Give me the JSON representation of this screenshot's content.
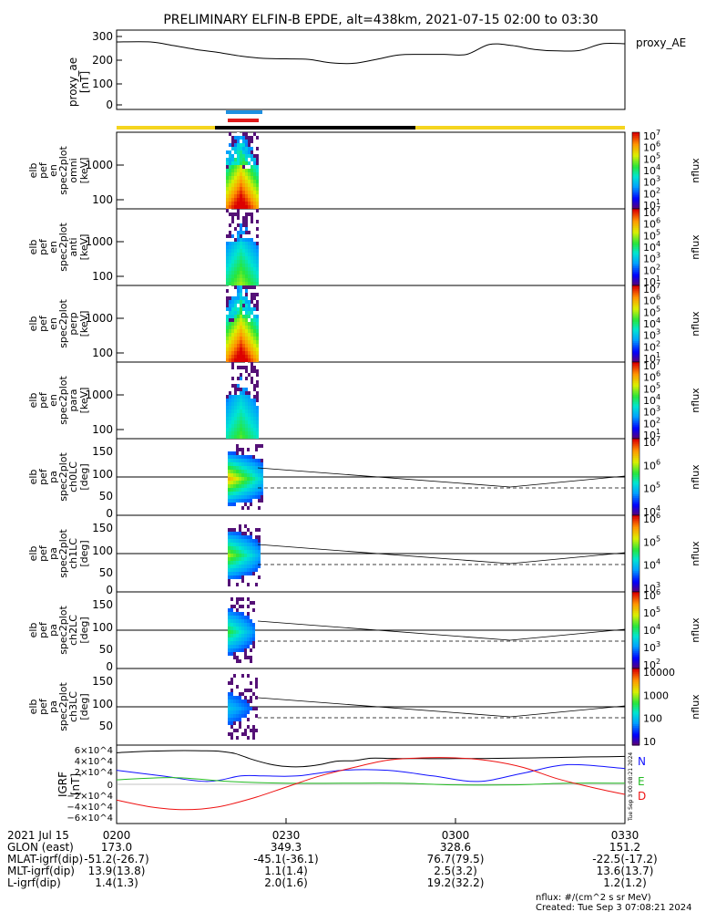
{
  "title": "PRELIMINARY ELFIN-B EPDE, alt=438km, 2021-07-15 02:00 to 03:30",
  "colors": {
    "yellow": "#f5d51f",
    "black": "#000000",
    "blue_bar": "#1e8fe0",
    "red_bar": "#e0191a",
    "N": "#1010ff",
    "E": "#22bb22",
    "D": "#ee1111"
  },
  "proxy_ae": {
    "ylabel": [
      "proxy_ae",
      "[nT]"
    ],
    "legend": "proxy_AE",
    "yticks": [
      "300",
      "200",
      "100",
      "0"
    ],
    "ylim": [
      -10,
      310
    ]
  },
  "spectro_panels": [
    {
      "ylabel": [
        "elb",
        "pef",
        "en",
        "spec2plot",
        "omni",
        "[keV]"
      ],
      "yticks": [
        "1000",
        "100"
      ],
      "cbar_ticks": [
        "10^7",
        "10^6",
        "10^5",
        "10^4",
        "10^3",
        "10^2",
        "10^1"
      ],
      "cbar_label": "nflux"
    },
    {
      "ylabel": [
        "elb",
        "pef",
        "en",
        "spec2plot",
        "anti",
        "[keV]"
      ],
      "yticks": [
        "1000",
        "100"
      ],
      "cbar_ticks": [
        "10^7",
        "10^6",
        "10^5",
        "10^4",
        "10^3",
        "10^2",
        "10^1"
      ],
      "cbar_label": "nflux"
    },
    {
      "ylabel": [
        "elb",
        "pef",
        "en",
        "spec2plot",
        "perp",
        "[keV]"
      ],
      "yticks": [
        "1000",
        "100"
      ],
      "cbar_ticks": [
        "10^7",
        "10^6",
        "10^5",
        "10^4",
        "10^3",
        "10^2",
        "10^1"
      ],
      "cbar_label": "nflux"
    },
    {
      "ylabel": [
        "elb",
        "pef",
        "en",
        "spec2plot",
        "para",
        "[keV]"
      ],
      "yticks": [
        "1000",
        "100"
      ],
      "cbar_ticks": [
        "10^7",
        "10^6",
        "10^5",
        "10^4",
        "10^3",
        "10^2",
        "10^1"
      ],
      "cbar_label": "nflux"
    }
  ],
  "pa_panels": [
    {
      "ylabel": [
        "elb",
        "pef",
        "pa",
        "spec2plot",
        "ch0LC",
        "[deg]"
      ],
      "yticks": [
        "150",
        "100",
        "50",
        "0"
      ],
      "cbar_ticks": [
        "10^7",
        "10^6",
        "10^5",
        "10^4"
      ],
      "cbar_label": "nflux"
    },
    {
      "ylabel": [
        "elb",
        "pef",
        "pa",
        "spec2plot",
        "ch1LC",
        "[deg]"
      ],
      "yticks": [
        "150",
        "100",
        "50",
        "0"
      ],
      "cbar_ticks": [
        "10^6",
        "10^5",
        "10^4",
        "10^3"
      ],
      "cbar_label": "nflux"
    },
    {
      "ylabel": [
        "elb",
        "pef",
        "pa",
        "spec2plot",
        "ch2LC",
        "[deg]"
      ],
      "yticks": [
        "150",
        "100",
        "50",
        "0"
      ],
      "cbar_ticks": [
        "10^6",
        "10^5",
        "10^4",
        "10^3",
        "10^2"
      ],
      "cbar_label": "nflux"
    },
    {
      "ylabel": [
        "elb",
        "pef",
        "pa",
        "spec2plot",
        "ch3LC",
        "[deg]"
      ],
      "yticks": [
        "150",
        "100",
        "50"
      ],
      "cbar_ticks": [
        "10000",
        "1000",
        "100",
        "10"
      ],
      "cbar_label": "nflux"
    }
  ],
  "igrf": {
    "ylabel": [
      "IGRF",
      "[nT]"
    ],
    "yticks": [
      "6×10^4",
      "4×10^4",
      "2×10^4",
      "0",
      "−2×10^4",
      "−4×10^4",
      "−6×10^4"
    ],
    "legend": [
      "N",
      "E",
      "D"
    ],
    "side_text": "Tue Sep  3 00:08:21 2024"
  },
  "bottom_table": {
    "rows": [
      {
        "label": "2021 Jul 15",
        "values": [
          "0200",
          "0230",
          "0300",
          "0330"
        ]
      },
      {
        "label": "GLON (east)",
        "values": [
          "173.0",
          "349.3",
          "328.6",
          "151.2"
        ]
      },
      {
        "label": "MLAT-igrf(dip)",
        "values": [
          "-51.2(-26.7)",
          "-45.1(-36.1)",
          "76.7(79.5)",
          "-22.5(-17.2)"
        ]
      },
      {
        "label": "MLT-igrf(dip)",
        "values": [
          "13.9(13.8)",
          "1.1(1.4)",
          "2.5(3.2)",
          "13.6(13.7)"
        ]
      },
      {
        "label": "L-igrf(dip)",
        "values": [
          "1.4(1.3)",
          "2.0(1.6)",
          "19.2(32.2)",
          "1.2(1.2)"
        ]
      }
    ]
  },
  "footer": {
    "units": "nflux: #/(cm^2 s sr MeV)",
    "created": "Created: Tue Sep  3 07:08:21 2024"
  },
  "chart_data": {
    "type": "line",
    "x": [
      "0200",
      "0230",
      "0300",
      "0330"
    ],
    "proxy_ae_series": {
      "x_min": [
        0,
        6,
        10,
        14,
        18,
        22,
        26,
        30,
        34,
        38,
        42,
        46,
        50,
        54,
        58,
        62,
        66,
        70,
        74,
        78,
        82,
        86,
        90
      ],
      "values": [
        262,
        262,
        248,
        232,
        220,
        205,
        196,
        194,
        192,
        178,
        176,
        192,
        210,
        212,
        212,
        212,
        252,
        248,
        232,
        226,
        228,
        255,
        255
      ]
    },
    "igrf_series": [
      {
        "name": "N",
        "x_min": [
          0,
          8,
          16,
          22,
          26,
          32,
          40,
          48,
          56,
          64,
          72,
          80,
          90
        ],
        "values": [
          25000,
          15000,
          5000,
          15000,
          15000,
          15000,
          25000,
          25000,
          15000,
          5000,
          20000,
          35000,
          28000
        ]
      },
      {
        "name": "E",
        "x_min": [
          0,
          10,
          20,
          30,
          40,
          50,
          60,
          70,
          80,
          90
        ],
        "values": [
          8000,
          12000,
          5000,
          2000,
          2000,
          2000,
          -1000,
          -1000,
          2000,
          2000
        ]
      },
      {
        "name": "D",
        "x_min": [
          0,
          6,
          12,
          18,
          24,
          30,
          36,
          42,
          48,
          54,
          60,
          66,
          72,
          78,
          84,
          90
        ],
        "values": [
          -28000,
          -40000,
          -45000,
          -40000,
          -25000,
          -5000,
          15000,
          30000,
          43000,
          47000,
          47000,
          42000,
          30000,
          10000,
          -5000,
          -18000
        ]
      }
    ]
  }
}
